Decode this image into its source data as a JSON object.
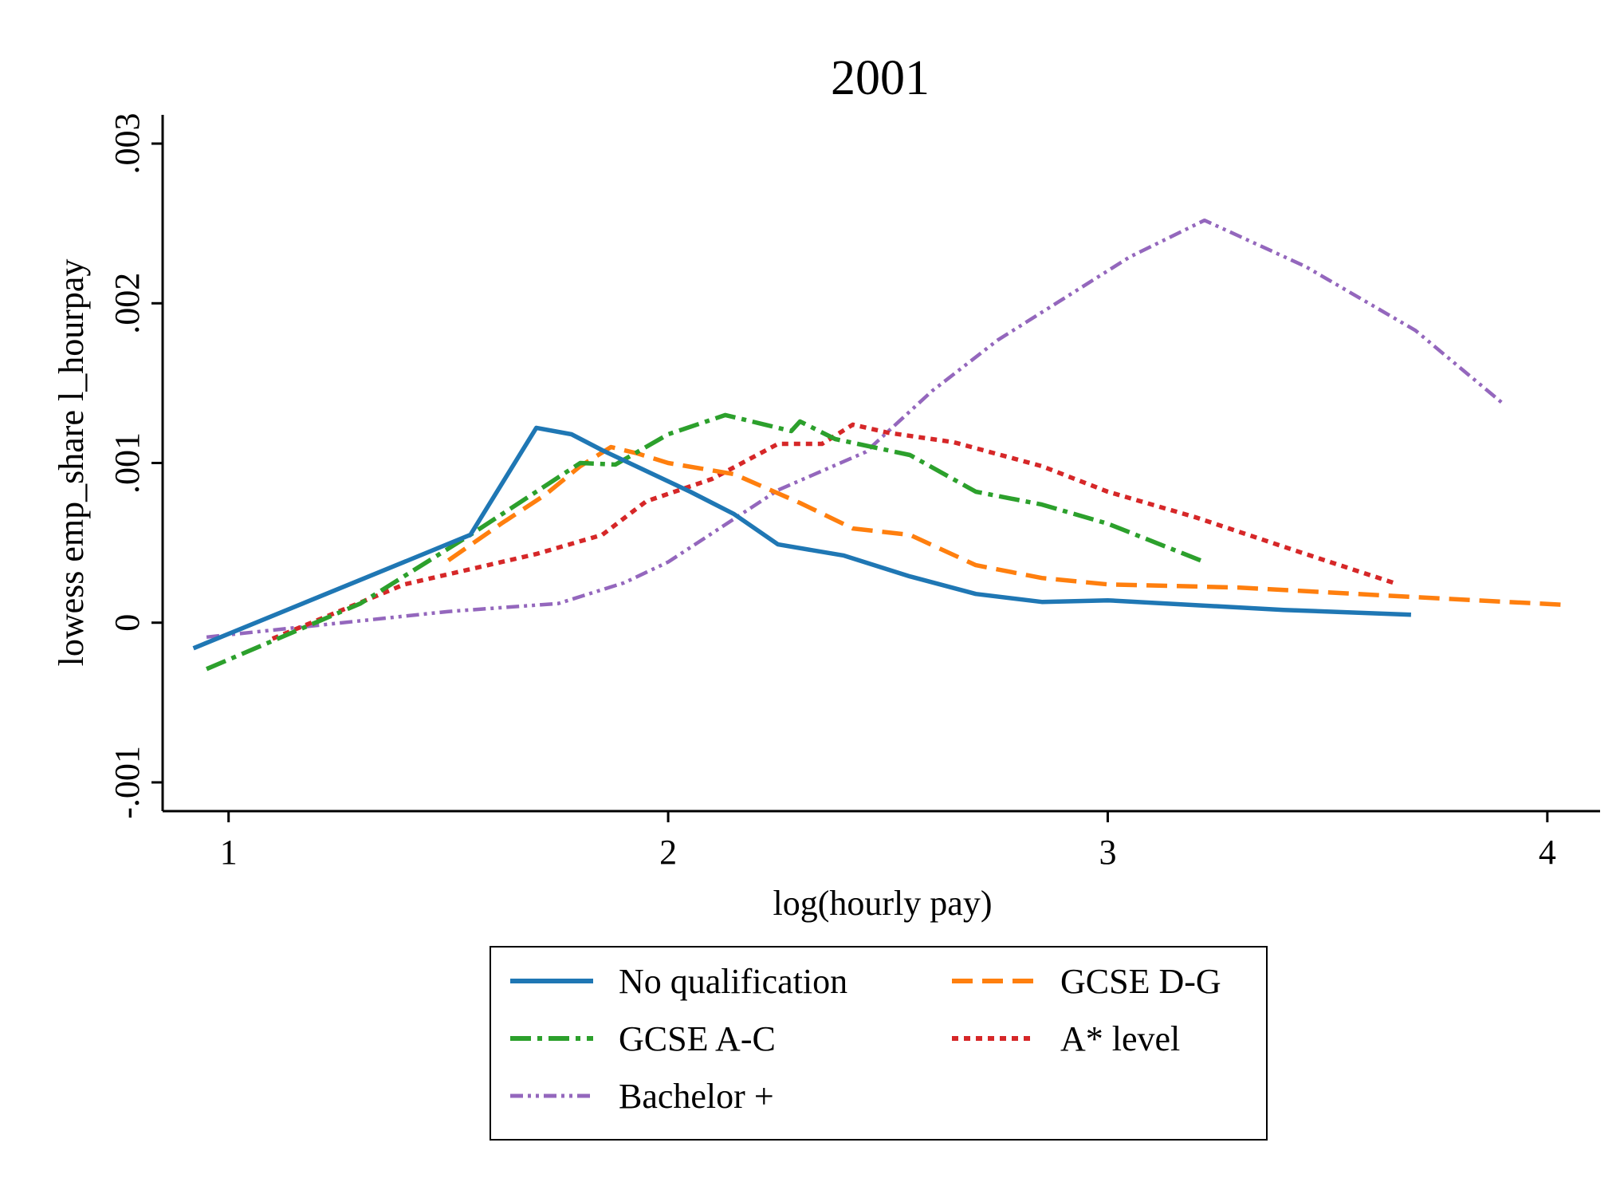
{
  "chart_data": {
    "type": "line",
    "title": "2001",
    "xlabel": "log(hourly pay)",
    "ylabel": "lowess emp_share l_hourpay",
    "xlim": [
      0.85,
      4.12
    ],
    "ylim": [
      -0.00118,
      0.00318
    ],
    "xticks": [
      1,
      2,
      3,
      4
    ],
    "xtick_labels": [
      "1",
      "2",
      "3",
      "4"
    ],
    "yticks": [
      -0.001,
      0,
      0.001,
      0.002,
      0.003
    ],
    "ytick_labels": [
      "-.001",
      "0",
      ".001",
      ".002",
      ".003"
    ],
    "grid": false,
    "legend_position": "bottom",
    "series": [
      {
        "name": "No qualification",
        "color": "#1f77b4",
        "dash": "solid",
        "x": [
          0.92,
          1.55,
          1.7,
          1.78,
          1.85,
          1.95,
          2.05,
          2.15,
          2.25,
          2.4,
          2.55,
          2.7,
          2.85,
          3.0,
          3.2,
          3.4,
          3.69
        ],
        "y": [
          -0.00016,
          0.00055,
          0.00122,
          0.00118,
          0.00108,
          0.00095,
          0.00082,
          0.00068,
          0.00049,
          0.00042,
          0.00029,
          0.00018,
          0.00013,
          0.00014,
          0.00011,
          8e-05,
          5e-05
        ]
      },
      {
        "name": "GCSE D-G",
        "color": "#ff7f0e",
        "dash": "long-dash",
        "x": [
          1.5,
          1.62,
          1.72,
          1.8,
          1.87,
          1.93,
          2.0,
          2.15,
          2.3,
          2.42,
          2.55,
          2.7,
          2.85,
          3.0,
          3.3,
          3.7,
          4.05
        ],
        "y": [
          0.00039,
          0.00062,
          0.0008,
          0.00098,
          0.0011,
          0.00106,
          0.001,
          0.00093,
          0.00075,
          0.00059,
          0.00055,
          0.00036,
          0.00028,
          0.00024,
          0.00022,
          0.00016,
          0.00011
        ]
      },
      {
        "name": "GCSE A-C",
        "color": "#2ca02c",
        "dash": "dash-dot",
        "x": [
          0.95,
          1.3,
          1.55,
          1.7,
          1.8,
          1.88,
          2.0,
          2.13,
          2.22,
          2.28,
          2.3,
          2.38,
          2.55,
          2.7,
          2.85,
          3.0,
          3.22
        ],
        "y": [
          -0.00029,
          0.00012,
          0.00055,
          0.00082,
          0.001,
          0.00099,
          0.00118,
          0.0013,
          0.00124,
          0.0012,
          0.00126,
          0.00115,
          0.00105,
          0.00082,
          0.00074,
          0.00062,
          0.00038
        ]
      },
      {
        "name": "A* level",
        "color": "#d62728",
        "dash": "dotted",
        "x": [
          1.1,
          1.4,
          1.7,
          1.85,
          1.95,
          2.1,
          2.25,
          2.35,
          2.42,
          2.5,
          2.65,
          2.85,
          3.0,
          3.2,
          3.45,
          3.65
        ],
        "y": [
          -0.0001,
          0.00024,
          0.00043,
          0.00055,
          0.00076,
          0.0009,
          0.00112,
          0.00112,
          0.00124,
          0.00119,
          0.00113,
          0.00098,
          0.00082,
          0.00066,
          0.00043,
          0.00025
        ]
      },
      {
        "name": "Bachelor +",
        "color": "#9467bd",
        "dash": "dash-dot-dot",
        "x": [
          0.95,
          1.5,
          1.75,
          1.9,
          2.0,
          2.1,
          2.25,
          2.45,
          2.6,
          2.75,
          2.9,
          3.05,
          3.22,
          3.45,
          3.7,
          3.9
        ],
        "y": [
          -9e-05,
          7e-05,
          0.00012,
          0.00025,
          0.00038,
          0.00056,
          0.00083,
          0.00107,
          0.00145,
          0.00177,
          0.00203,
          0.00229,
          0.00252,
          0.00223,
          0.00183,
          0.00137
        ]
      }
    ]
  }
}
